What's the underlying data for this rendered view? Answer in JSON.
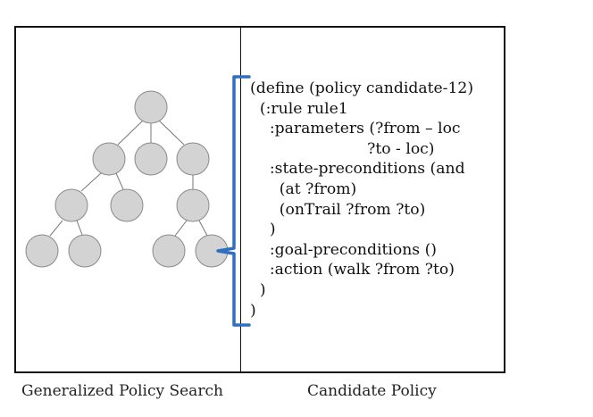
{
  "captions": {
    "left": "Generalized Policy Search",
    "right": "Candidate Policy"
  },
  "colors": {
    "node_fill": "#d3d3d3",
    "node_stroke": "#8a8a8a",
    "brace": "#2f6fbd",
    "edge": "#777777"
  },
  "code_lines": [
    "(define (policy candidate-12)",
    "  (:rule rule1",
    "    :parameters (?from – loc",
    "                        ?to - loc)",
    "    :state-preconditions (and",
    "      (at ?from)",
    "      (onTrail ?from ?to)",
    "    )",
    "    :goal-preconditions ()",
    "    :action (walk ?from ?to)",
    "  )",
    ")"
  ]
}
